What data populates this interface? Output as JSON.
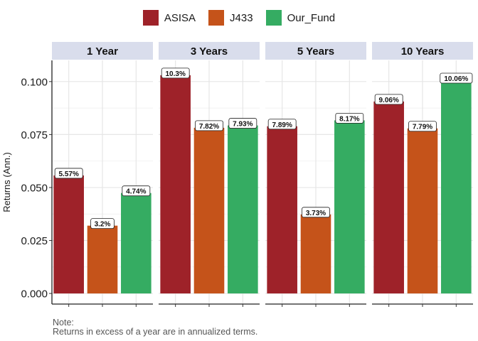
{
  "legend": [
    {
      "name": "ASISA",
      "color": "#9E2229"
    },
    {
      "name": "J433",
      "color": "#C5531A"
    },
    {
      "name": "Our_Fund",
      "color": "#35AC62"
    }
  ],
  "note": {
    "line1": "Note:",
    "line2": "Returns in excess of a year are in annualized terms."
  },
  "chart_data": {
    "type": "bar",
    "ylabel": "Returns (Ann.)",
    "xlabel": "",
    "ylim": [
      -0.005,
      0.11
    ],
    "yticks": [
      "0.000",
      "0.025",
      "0.050",
      "0.075",
      "0.100"
    ],
    "ytick_values": [
      0,
      0.025,
      0.05,
      0.075,
      0.1
    ],
    "grid": true,
    "legend_position": "top",
    "categories": [
      "1 Year",
      "3 Years",
      "5 Years",
      "10 Years"
    ],
    "series": [
      {
        "name": "ASISA",
        "color": "#9E2229",
        "values": [
          0.0557,
          0.103,
          0.0789,
          0.0906
        ],
        "labels": [
          "5.57%",
          "10.3%",
          "7.89%",
          "9.06%"
        ]
      },
      {
        "name": "J433",
        "color": "#C5531A",
        "values": [
          0.032,
          0.0782,
          0.0373,
          0.0779
        ],
        "labels": [
          "3.2%",
          "7.82%",
          "3.73%",
          "7.79%"
        ]
      },
      {
        "name": "Our_Fund",
        "color": "#35AC62",
        "values": [
          0.0474,
          0.0793,
          0.0817,
          0.1006
        ],
        "labels": [
          "4.74%",
          "7.93%",
          "8.17%",
          "10.06%"
        ]
      }
    ]
  }
}
